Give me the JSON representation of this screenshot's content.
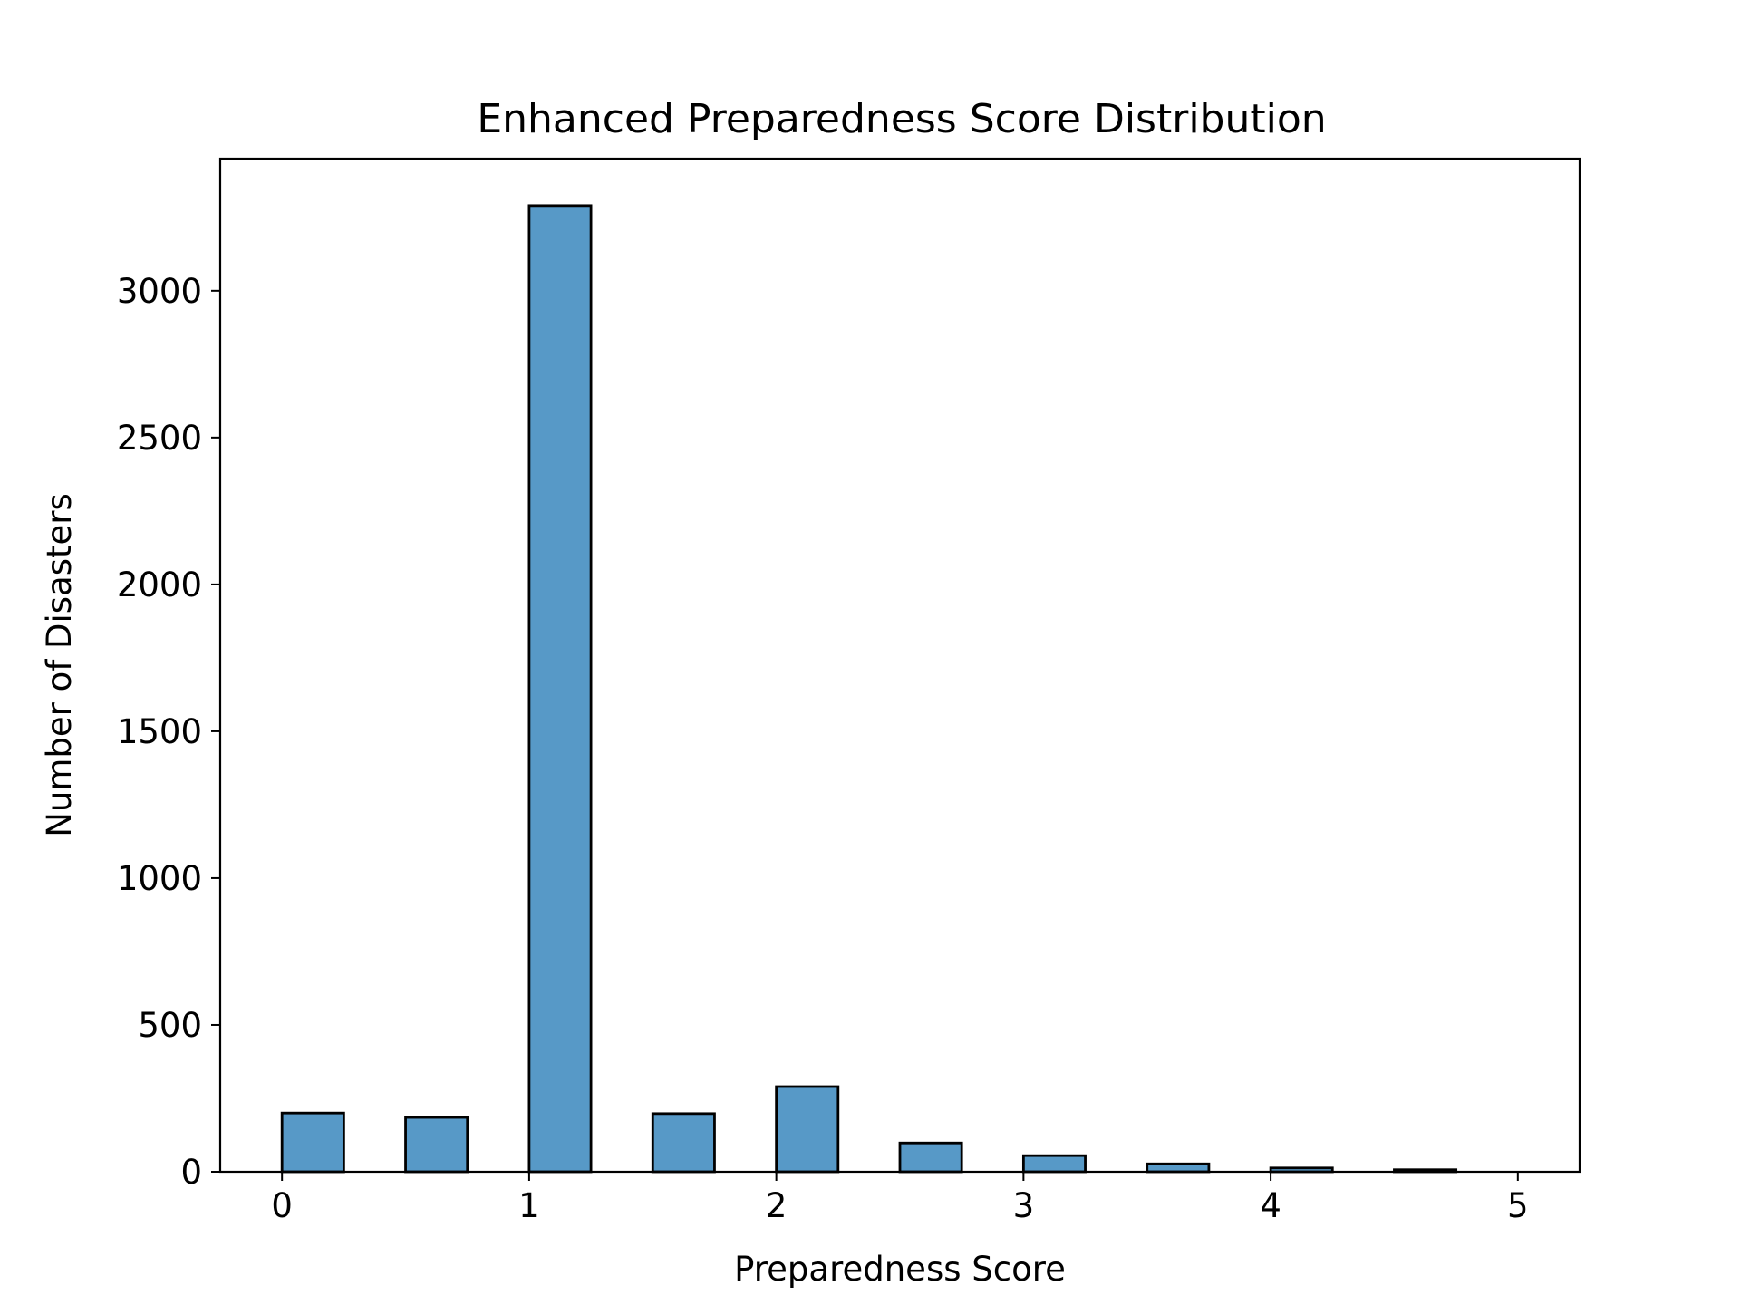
{
  "chart_data": {
    "type": "bar",
    "title": "Enhanced Preparedness Score Distribution",
    "xlabel": "Preparedness Score",
    "ylabel": "Number of Disasters",
    "xlim": [
      -0.25,
      5.25
    ],
    "ylim": [
      0,
      3450
    ],
    "xticks": [
      0,
      1,
      2,
      3,
      4,
      5
    ],
    "yticks": [
      0,
      500,
      1000,
      1500,
      2000,
      2500,
      3000
    ],
    "bar_width": 0.25,
    "bins": [
      {
        "x0": 0.0,
        "value": 200
      },
      {
        "x0": 0.5,
        "value": 185
      },
      {
        "x0": 1.0,
        "value": 3290
      },
      {
        "x0": 1.5,
        "value": 198
      },
      {
        "x0": 2.0,
        "value": 290
      },
      {
        "x0": 2.5,
        "value": 98
      },
      {
        "x0": 3.0,
        "value": 55
      },
      {
        "x0": 3.5,
        "value": 27
      },
      {
        "x0": 4.0,
        "value": 13
      },
      {
        "x0": 4.5,
        "value": 7
      }
    ],
    "grid": false,
    "colors": {
      "bar_fill": "#5799c7",
      "bar_edge": "#000000"
    }
  }
}
